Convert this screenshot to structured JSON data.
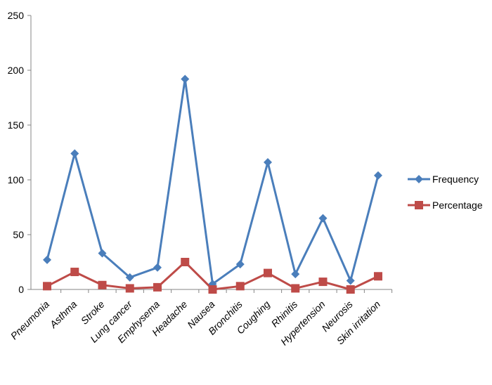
{
  "chart_data": {
    "type": "line",
    "categories": [
      "Pneumonia",
      "Asthma",
      "Stroke",
      "Lung cancer",
      "Emphysema",
      "Headache",
      "Nausea",
      "Bronchitis",
      "Coughing",
      "Rhinitis",
      "Hypertension",
      "Neurosis",
      "Skin irritation"
    ],
    "series": [
      {
        "name": "Frequency",
        "color": "#4a7ebb",
        "marker": "diamond",
        "values": [
          27,
          124,
          33,
          11,
          20,
          192,
          5,
          23,
          116,
          14,
          65,
          8,
          104
        ]
      },
      {
        "name": "Percentage",
        "color": "#be4b48",
        "marker": "square",
        "values": [
          3,
          16,
          4,
          1,
          2,
          25,
          0,
          3,
          15,
          1,
          7,
          0,
          12
        ]
      }
    ],
    "ylim": [
      0,
      250
    ],
    "yticks": [
      0,
      50,
      100,
      150,
      200,
      250
    ],
    "grid": false,
    "legend": "right"
  }
}
